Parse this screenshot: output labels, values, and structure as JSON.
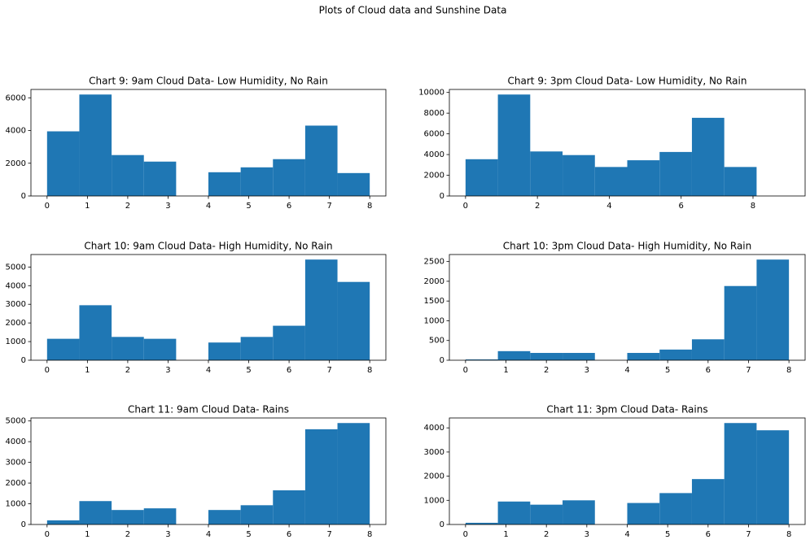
{
  "title": "Plots of Cloud data and Sunshine Data",
  "chart_data": [
    {
      "type": "histogram",
      "title": "Chart 9: 9am Cloud Data- Low Humidity, No Rain",
      "color": "#1f77b4",
      "bins": [
        0,
        0.8,
        1.6,
        2.4,
        3.2,
        4.0,
        4.8,
        5.6,
        6.4,
        7.2,
        8.0
      ],
      "counts": [
        3950,
        6200,
        2500,
        2100,
        0,
        1450,
        1750,
        2250,
        4300,
        1400
      ],
      "xlim": [
        -0.4,
        8.4
      ],
      "xticks": [
        0,
        1,
        2,
        3,
        4,
        5,
        6,
        7,
        8
      ],
      "ylim": [
        0,
        6510
      ],
      "yticks": [
        0,
        2000,
        4000,
        6000
      ]
    },
    {
      "type": "histogram",
      "title": "Chart 9: 3pm Cloud Data- Low Humidity, No Rain",
      "color": "#1f77b4",
      "bins": [
        0,
        0.9,
        1.8,
        2.7,
        3.6,
        4.5,
        5.4,
        6.3,
        7.2,
        8.1,
        9.0
      ],
      "counts": [
        3550,
        9800,
        4300,
        3950,
        2800,
        3450,
        4250,
        7550,
        2800,
        0
      ],
      "xlim": [
        -0.45,
        9.45
      ],
      "xticks": [
        0,
        2,
        4,
        6,
        8
      ],
      "ylim": [
        0,
        10290
      ],
      "yticks": [
        0,
        2000,
        4000,
        6000,
        8000,
        10000
      ]
    },
    {
      "type": "histogram",
      "title": "Chart 10: 9am Cloud Data- High Humidity, No Rain",
      "color": "#1f77b4",
      "bins": [
        0,
        0.8,
        1.6,
        2.4,
        3.2,
        4.0,
        4.8,
        5.6,
        6.4,
        7.2,
        8.0
      ],
      "counts": [
        1150,
        2950,
        1250,
        1150,
        0,
        950,
        1250,
        1850,
        5400,
        4200
      ],
      "xlim": [
        -0.4,
        8.4
      ],
      "xticks": [
        0,
        1,
        2,
        3,
        4,
        5,
        6,
        7,
        8
      ],
      "ylim": [
        0,
        5670
      ],
      "yticks": [
        0,
        1000,
        2000,
        3000,
        4000,
        5000
      ]
    },
    {
      "type": "histogram",
      "title": "Chart 10: 3pm Cloud Data- High Humidity, No Rain",
      "color": "#1f77b4",
      "bins": [
        0,
        0.8,
        1.6,
        2.4,
        3.2,
        4.0,
        4.8,
        5.6,
        6.4,
        7.2,
        8.0
      ],
      "counts": [
        20,
        230,
        185,
        185,
        0,
        185,
        270,
        530,
        1880,
        2550
      ],
      "xlim": [
        -0.4,
        8.4
      ],
      "xticks": [
        0,
        1,
        2,
        3,
        4,
        5,
        6,
        7,
        8
      ],
      "ylim": [
        0,
        2678
      ],
      "yticks": [
        0,
        500,
        1000,
        1500,
        2000,
        2500
      ]
    },
    {
      "type": "histogram",
      "title": "Chart 11: 9am Cloud Data- Rains",
      "color": "#1f77b4",
      "bins": [
        0,
        0.8,
        1.6,
        2.4,
        3.2,
        4.0,
        4.8,
        5.6,
        6.4,
        7.2,
        8.0
      ],
      "counts": [
        200,
        1130,
        700,
        780,
        0,
        700,
        930,
        1650,
        4600,
        4900
      ],
      "xlim": [
        -0.4,
        8.4
      ],
      "xticks": [
        0,
        1,
        2,
        3,
        4,
        5,
        6,
        7,
        8
      ],
      "ylim": [
        0,
        5145
      ],
      "yticks": [
        0,
        1000,
        2000,
        3000,
        4000,
        5000
      ]
    },
    {
      "type": "histogram",
      "title": "Chart 11: 3pm Cloud Data- Rains",
      "color": "#1f77b4",
      "bins": [
        0,
        0.8,
        1.6,
        2.4,
        3.2,
        4.0,
        4.8,
        5.6,
        6.4,
        7.2,
        8.0
      ],
      "counts": [
        70,
        950,
        820,
        1000,
        0,
        890,
        1300,
        1880,
        4200,
        3900
      ],
      "xlim": [
        -0.4,
        8.4
      ],
      "xticks": [
        0,
        1,
        2,
        3,
        4,
        5,
        6,
        7,
        8
      ],
      "ylim": [
        0,
        4410
      ],
      "yticks": [
        0,
        1000,
        2000,
        3000,
        4000
      ]
    }
  ]
}
